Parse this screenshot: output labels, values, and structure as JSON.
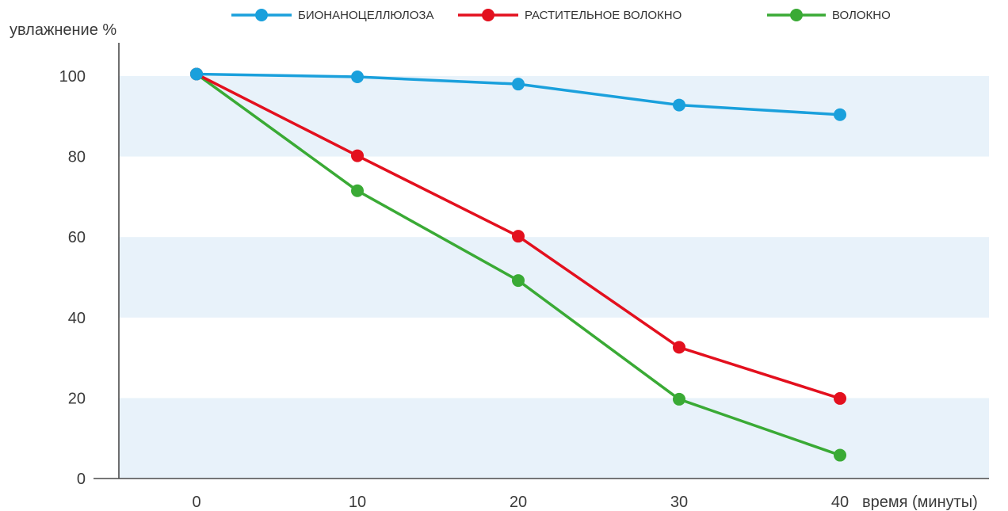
{
  "chart_data": {
    "type": "line",
    "ylabel": "увлажнение %",
    "xlabel": "время (минуты)",
    "x": [
      0,
      10,
      20,
      30,
      40
    ],
    "xticks": [
      "0",
      "10",
      "20",
      "30",
      "40"
    ],
    "yticks": [
      "0",
      "20",
      "40",
      "60",
      "80",
      "100"
    ],
    "ylim": [
      0,
      100
    ],
    "xlim": [
      0,
      40
    ],
    "grid": "alternating horizontal bands",
    "legend_position": "top",
    "series": [
      {
        "name": "БИОНАНОЦЕЛЛЮЛОЗА",
        "color": "#1aa0dc",
        "values": [
          100.5,
          99.8,
          98.0,
          92.8,
          90.4
        ]
      },
      {
        "name": "РАСТИТЕЛЬНОЕ ВОЛОКНО",
        "color": "#e3101e",
        "values": [
          100.5,
          80.2,
          60.2,
          32.6,
          19.9
        ]
      },
      {
        "name": "ВОЛОКНО",
        "color": "#3aaa35",
        "values": [
          100.5,
          71.5,
          49.2,
          19.7,
          5.8
        ]
      }
    ],
    "band_color": "#e8f2fa"
  }
}
